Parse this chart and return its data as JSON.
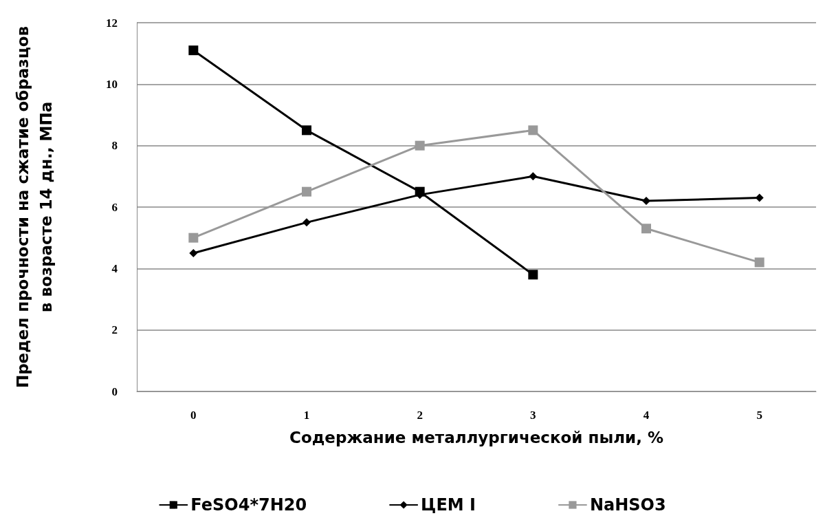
{
  "chart_data": {
    "type": "line",
    "xlabel": "Содержание металлургической пыли, %",
    "ylabel": "Предел прочности на сжатие образцов\nв возрасте 14 дн., МПа",
    "categories": [
      "0",
      "1",
      "2",
      "3",
      "4",
      "5"
    ],
    "series": [
      {
        "name": "FeSO4*7H20",
        "color": "#000000",
        "marker": "square",
        "values": [
          11.1,
          8.5,
          6.5,
          3.8,
          null,
          null
        ]
      },
      {
        "name": "ЦЕМ I",
        "color": "#000000",
        "marker": "diamond",
        "values": [
          4.5,
          5.5,
          6.4,
          7.0,
          6.2,
          6.3
        ]
      },
      {
        "name": "NaHSO3",
        "color": "#999999",
        "marker": "square",
        "values": [
          5.0,
          6.5,
          8.0,
          8.5,
          5.3,
          4.2
        ]
      }
    ],
    "ylim": [
      0,
      12
    ],
    "yticks": [
      0,
      2,
      4,
      6,
      8,
      10,
      12
    ],
    "grid": "y",
    "legend": "bottom",
    "line_style": "solid"
  }
}
